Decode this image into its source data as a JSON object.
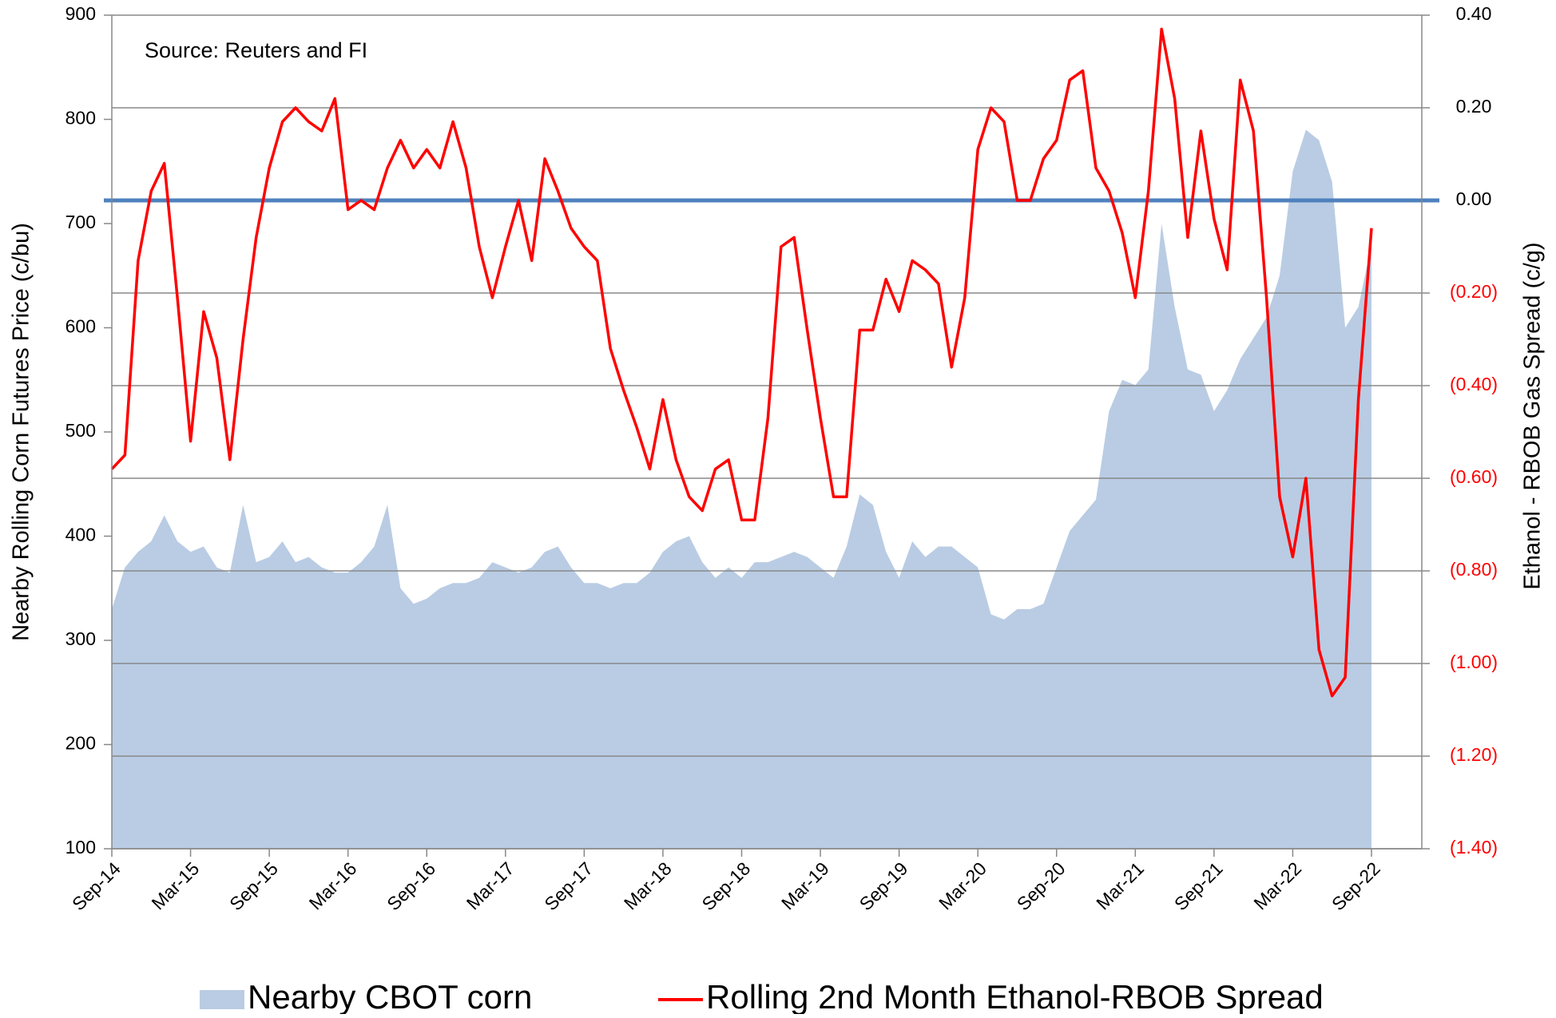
{
  "chart_data": {
    "type": "combo",
    "annotation": "Source: Reuters and FI",
    "y_label": "Nearby Rolling Corn Futures Price (c/bu)",
    "y2_label": "Ethanol - RBOB Gas Spread (c/g)",
    "categories": [
      "Sep-14",
      null,
      null,
      null,
      null,
      null,
      "Mar-15",
      null,
      null,
      null,
      null,
      null,
      "Sep-15",
      null,
      null,
      null,
      null,
      null,
      "Mar-16",
      null,
      null,
      null,
      null,
      null,
      "Sep-16",
      null,
      null,
      null,
      null,
      null,
      "Mar-17",
      null,
      null,
      null,
      null,
      null,
      "Sep-17",
      null,
      null,
      null,
      null,
      null,
      "Mar-18",
      null,
      null,
      null,
      null,
      null,
      "Sep-18",
      null,
      null,
      null,
      null,
      null,
      "Mar-19",
      null,
      null,
      null,
      null,
      null,
      "Sep-19",
      null,
      null,
      null,
      null,
      null,
      "Mar-20",
      null,
      null,
      null,
      null,
      null,
      "Sep-20",
      null,
      null,
      null,
      null,
      null,
      "Mar-21",
      null,
      null,
      null,
      null,
      null,
      "Sep-21",
      null,
      null,
      null,
      null,
      null,
      "Mar-22",
      null,
      null,
      null,
      null,
      null,
      "Sep-22"
    ],
    "ylim": [
      100,
      900
    ],
    "yticks": [
      100,
      200,
      300,
      400,
      500,
      600,
      700,
      800,
      900
    ],
    "y2lim": [
      -1.4,
      0.4
    ],
    "y2ticks": [
      {
        "value": 0.4,
        "label": "0.40"
      },
      {
        "value": 0.2,
        "label": "0.20"
      },
      {
        "value": 0,
        "label": "0.00"
      },
      {
        "value": -0.2,
        "label": "(0.20)"
      },
      {
        "value": -0.4,
        "label": "(0.40)"
      },
      {
        "value": -0.6,
        "label": "(0.60)"
      },
      {
        "value": -0.8,
        "label": "(0.80)"
      },
      {
        "value": -1.0,
        "label": "(1.00)"
      },
      {
        "value": -1.2,
        "label": "(1.20)"
      },
      {
        "value": -1.4,
        "label": "(1.40)"
      }
    ],
    "y2tick_negative_color": "#ff0000",
    "zero_line_color": "#4f81bd",
    "series": [
      {
        "name": "Nearby CBOT corn",
        "type": "area",
        "color": "#b9cce4",
        "values": [
          330,
          370,
          385,
          395,
          420,
          395,
          385,
          390,
          370,
          365,
          430,
          375,
          380,
          395,
          375,
          380,
          370,
          365,
          365,
          375,
          390,
          430,
          350,
          335,
          340,
          350,
          355,
          355,
          360,
          375,
          370,
          365,
          370,
          385,
          390,
          370,
          355,
          355,
          350,
          355,
          355,
          365,
          385,
          395,
          400,
          375,
          360,
          370,
          360,
          375,
          375,
          380,
          385,
          380,
          370,
          360,
          390,
          440,
          430,
          385,
          360,
          395,
          380,
          390,
          390,
          380,
          370,
          325,
          320,
          330,
          330,
          335,
          370,
          405,
          420,
          435,
          520,
          550,
          545,
          560,
          700,
          620,
          560,
          555,
          520,
          540,
          570,
          590,
          610,
          650,
          750,
          790,
          780,
          740,
          600,
          620,
          680
        ]
      },
      {
        "name": "Rolling 2nd Month Ethanol-RBOB Spread",
        "type": "line",
        "axis": "y2",
        "color": "#ff0000",
        "values": [
          -0.58,
          -0.55,
          -0.13,
          0.02,
          0.08,
          -0.21,
          -0.52,
          -0.24,
          -0.34,
          -0.56,
          -0.3,
          -0.08,
          0.07,
          0.17,
          0.2,
          0.17,
          0.15,
          0.22,
          -0.02,
          0,
          -0.02,
          0.07,
          0.13,
          0.07,
          0.11,
          0.07,
          0.17,
          0.07,
          -0.1,
          -0.21,
          -0.1,
          0,
          -0.13,
          0.09,
          0.02,
          -0.06,
          -0.1,
          -0.13,
          -0.32,
          -0.41,
          -0.49,
          -0.58,
          -0.43,
          -0.56,
          -0.64,
          -0.67,
          -0.58,
          -0.56,
          -0.69,
          -0.69,
          -0.47,
          -0.1,
          -0.08,
          -0.28,
          -0.47,
          -0.64,
          -0.64,
          -0.28,
          -0.28,
          -0.17,
          -0.24,
          -0.13,
          -0.15,
          -0.18,
          -0.36,
          -0.21,
          0.11,
          0.2,
          0.17,
          0,
          0,
          0.09,
          0.13,
          0.26,
          0.28,
          0.07,
          0.02,
          -0.07,
          -0.21,
          0.02,
          0.37,
          0.22,
          -0.08,
          0.15,
          -0.04,
          -0.15,
          0.26,
          0.15,
          -0.21,
          -0.64,
          -0.77,
          -0.6,
          -0.97,
          -1.07,
          -1.03,
          -0.43,
          -0.06
        ]
      }
    ]
  }
}
